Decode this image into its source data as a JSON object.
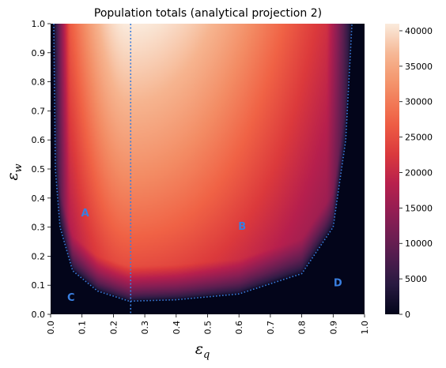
{
  "chart_data": {
    "type": "heatmap",
    "title": "Population totals (analytical projection 2)",
    "xlabel": "ε",
    "xlabel_sub": "q",
    "ylabel": "ε",
    "ylabel_sub": "w",
    "x_range": [
      0.0,
      1.0
    ],
    "y_range": [
      0.0,
      1.0
    ],
    "x_ticks": [
      "0.0",
      "0.1",
      "0.2",
      "0.3",
      "0.4",
      "0.5",
      "0.6",
      "0.7",
      "0.8",
      "0.9",
      "1.0"
    ],
    "y_ticks": [
      "0.0",
      "0.1",
      "0.2",
      "0.3",
      "0.4",
      "0.5",
      "0.6",
      "0.7",
      "0.8",
      "0.9",
      "1.0"
    ],
    "colorbar": {
      "min": 0,
      "max": 41000,
      "ticks": [
        "0",
        "5000",
        "10000",
        "15000",
        "20000",
        "25000",
        "30000",
        "35000",
        "40000"
      ],
      "tick_values": [
        0,
        5000,
        10000,
        15000,
        20000,
        25000,
        30000,
        35000,
        40000
      ]
    },
    "peak": {
      "x": 0.25,
      "y": 1.0,
      "value": 41000
    },
    "zero_region_boundary": [
      {
        "x": 0.01,
        "y": 1.0
      },
      {
        "x": 0.015,
        "y": 0.5
      },
      {
        "x": 0.03,
        "y": 0.3
      },
      {
        "x": 0.07,
        "y": 0.15
      },
      {
        "x": 0.15,
        "y": 0.08
      },
      {
        "x": 0.25,
        "y": 0.045
      },
      {
        "x": 0.4,
        "y": 0.05
      },
      {
        "x": 0.6,
        "y": 0.07
      },
      {
        "x": 0.8,
        "y": 0.14
      },
      {
        "x": 0.9,
        "y": 0.3
      },
      {
        "x": 0.94,
        "y": 0.6
      },
      {
        "x": 0.96,
        "y": 1.0
      }
    ],
    "vertical_line": {
      "x": 0.255
    },
    "line_color": "#3a7fe0",
    "regions": [
      {
        "label": "A",
        "x": 0.11,
        "y": 0.35
      },
      {
        "label": "B",
        "x": 0.61,
        "y": 0.305
      },
      {
        "label": "C",
        "x": 0.065,
        "y": 0.06
      },
      {
        "label": "D",
        "x": 0.915,
        "y": 0.11
      }
    ],
    "colormap": "rocket",
    "colormap_stops": [
      "#03051a",
      "#2b1b44",
      "#5c1e50",
      "#8a1e54",
      "#b61f4e",
      "#dc3a3c",
      "#f06245",
      "#f38d65",
      "#f6b48f",
      "#faebdd"
    ]
  }
}
